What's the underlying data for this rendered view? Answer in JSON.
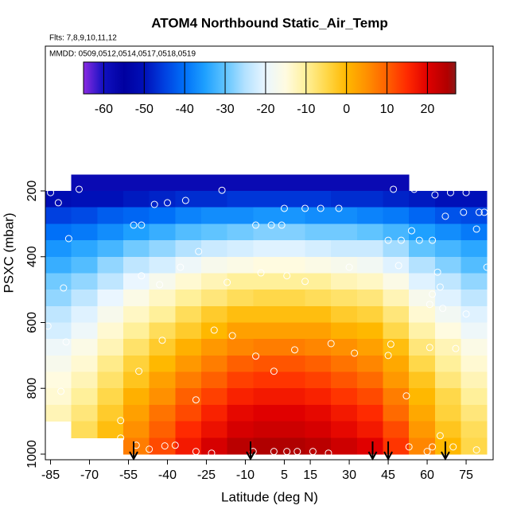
{
  "chart_data": {
    "type": "heatmap",
    "title": "ATOM4 Northbound Static_Air_Temp",
    "subtitle": "Flts: 7,8,9,10,11,12",
    "annotation": "MMDD: 0509,0512,0514,0517,0518,0519",
    "xlabel": "Latitude (deg N)",
    "ylabel": "PSXC (mbar)",
    "xlim": [
      -87,
      85.4
    ],
    "ylim": [
      1017,
      -240
    ],
    "xticks": [
      -85,
      -70,
      -55,
      -40,
      -25,
      -10,
      5,
      15,
      30,
      45,
      60,
      75
    ],
    "yticks": [
      200,
      400,
      600,
      800,
      1000
    ],
    "xbins": [
      -87,
      -77,
      -67,
      -57,
      -47,
      -37,
      -27,
      -17,
      -7,
      3,
      13,
      23,
      33,
      43,
      53,
      63,
      73,
      83
    ],
    "ybins": [
      150,
      200,
      250,
      300,
      350,
      400,
      450,
      500,
      550,
      600,
      650,
      700,
      750,
      800,
      850,
      900,
      950,
      1000
    ],
    "values": [
      [
        null,
        -58,
        -58,
        -58,
        -58,
        -58,
        -58,
        -58,
        -58,
        -58,
        -58,
        -58,
        -58,
        -58,
        null,
        null,
        null
      ],
      [
        -51,
        -50,
        -50,
        -49,
        -48,
        -47,
        -47,
        -46,
        -46,
        -46,
        -46,
        -47,
        -47,
        -48,
        -49,
        -50,
        -50
      ],
      [
        -45,
        -44,
        -42,
        -41,
        -40,
        -38,
        -37,
        -37,
        -36,
        -36,
        -37,
        -37,
        -38,
        -39,
        -41,
        -43,
        -44
      ],
      [
        -40,
        -39,
        -37,
        -35,
        -33,
        -31,
        -30,
        -29,
        -28,
        -28,
        -29,
        -29,
        -30,
        -32,
        -35,
        -37,
        -39
      ],
      [
        -36,
        -34,
        -32,
        -29,
        -27,
        -25,
        -23,
        -22,
        -21,
        -21,
        -22,
        -23,
        -23,
        -26,
        -30,
        -32,
        -34
      ],
      [
        -33,
        -31,
        -27,
        -24,
        -22,
        -19,
        -17,
        -16,
        -15,
        -15,
        -16,
        -17,
        -18,
        -21,
        -25,
        -28,
        -31
      ],
      [
        -29,
        -27,
        -24,
        -20,
        -17,
        -14,
        -12,
        -10,
        -10,
        -10,
        -10,
        -12,
        -13,
        -16,
        -21,
        -24,
        -27
      ],
      [
        -27,
        -24,
        -20,
        -16,
        -13,
        -10,
        -8,
        -6,
        -5,
        -5,
        -6,
        -7,
        -8,
        -12,
        -17,
        -21,
        -24
      ],
      [
        -24,
        -21,
        -17,
        -13,
        -10,
        -6,
        -3,
        -1,
        -1,
        -1,
        -1,
        -3,
        -4,
        -8,
        -14,
        -18,
        -21
      ],
      [
        -22,
        -19,
        -14,
        -10,
        -6,
        -3,
        0,
        3,
        3,
        3,
        3,
        1,
        0,
        -5,
        -11,
        -15,
        -19
      ],
      [
        -19,
        -16,
        -12,
        -7,
        -3,
        1,
        4,
        6,
        7,
        7,
        6,
        5,
        3,
        -1,
        -8,
        -12,
        -16
      ],
      [
        -17,
        -14,
        -9,
        -4,
        0,
        4,
        7,
        10,
        11,
        11,
        10,
        8,
        6,
        2,
        -5,
        -10,
        -14
      ],
      [
        -15,
        -12,
        -7,
        -2,
        3,
        7,
        10,
        13,
        14,
        14,
        13,
        11,
        9,
        4,
        -2,
        -8,
        -12
      ],
      [
        -14,
        -10,
        -5,
        1,
        5,
        10,
        13,
        16,
        17,
        17,
        16,
        14,
        12,
        7,
        0,
        -5,
        -10
      ],
      [
        -12,
        -8,
        -3,
        3,
        8,
        12,
        16,
        19,
        20,
        20,
        19,
        17,
        15,
        9,
        2,
        -4,
        -8
      ],
      [
        null,
        -6,
        -1,
        5,
        10,
        15,
        18,
        21,
        22,
        22,
        21,
        19,
        17,
        12,
        4,
        -2,
        -6
      ],
      [
        null,
        null,
        null,
        7,
        12,
        17,
        21,
        24,
        25,
        25,
        24,
        22,
        20,
        14,
        6,
        0,
        -5
      ]
    ],
    "colorscale": {
      "values": [
        -65,
        -60,
        -55,
        -50,
        -45,
        -40,
        -35,
        -30,
        -25,
        -20,
        -15,
        -10,
        -5,
        0,
        5,
        10,
        15,
        20,
        25,
        27
      ],
      "colors": [
        "#8a2be2",
        "#1010c0",
        "#0000a0",
        "#0010b8",
        "#0040e0",
        "#0070f8",
        "#1ea0ff",
        "#60c4ff",
        "#b4e2ff",
        "#eaf6ff",
        "#fffbe0",
        "#fff09a",
        "#ffd84a",
        "#ffb800",
        "#ff9000",
        "#ff6000",
        "#ff2a00",
        "#e00000",
        "#b00000",
        "#8b1a1a"
      ]
    },
    "cblim": [
      -65,
      27
    ],
    "cbticks": [
      -60,
      -50,
      -40,
      -30,
      -20,
      -10,
      0,
      10,
      20
    ],
    "points": {
      "x": [
        -85,
        -82,
        -74,
        -45,
        -40,
        -33,
        -19,
        -53,
        -50,
        -78,
        -6,
        0,
        4,
        5,
        13,
        19,
        26,
        47,
        55,
        63,
        69,
        75,
        80,
        82,
        74,
        67,
        79,
        54,
        45,
        50,
        57,
        62,
        -28,
        -35,
        30,
        49,
        83,
        -50,
        -43,
        -17,
        -4,
        6,
        13,
        -80,
        64,
        65,
        62,
        61,
        66,
        75,
        -86,
        -22,
        -15,
        -42,
        -79,
        46,
        23,
        9,
        32,
        -6,
        45,
        61,
        71,
        -51,
        1,
        -81,
        -29,
        52,
        -58,
        -58,
        -52,
        -41,
        -37,
        -47,
        -29,
        -23,
        -7,
        1,
        6,
        10,
        16,
        22,
        53,
        60,
        62,
        70,
        79,
        65
      ],
      "y": [
        205,
        236,
        195,
        241,
        236,
        229,
        198,
        304,
        304,
        345,
        304,
        304,
        304,
        253,
        253,
        253,
        253,
        195,
        195,
        212,
        205,
        205,
        265,
        265,
        265,
        277,
        316,
        321,
        350,
        350,
        350,
        350,
        384,
        432,
        432,
        427,
        432,
        458,
        485,
        478,
        449,
        458,
        475,
        495,
        447,
        492,
        514,
        545,
        557,
        574,
        611,
        623,
        640,
        654,
        659,
        666,
        664,
        683,
        693,
        702,
        700,
        676,
        679,
        748,
        748,
        809,
        835,
        823,
        898,
        951,
        973,
        975,
        973,
        985,
        992,
        997,
        992,
        992,
        992,
        992,
        992,
        997,
        978,
        992,
        978,
        978,
        987,
        944
      ]
    },
    "arrows_x": [
      -53,
      -8,
      39,
      45,
      67
    ],
    "colors": {
      "points": "#ffffff",
      "arrows": "#000000",
      "axes": "#000000"
    }
  }
}
